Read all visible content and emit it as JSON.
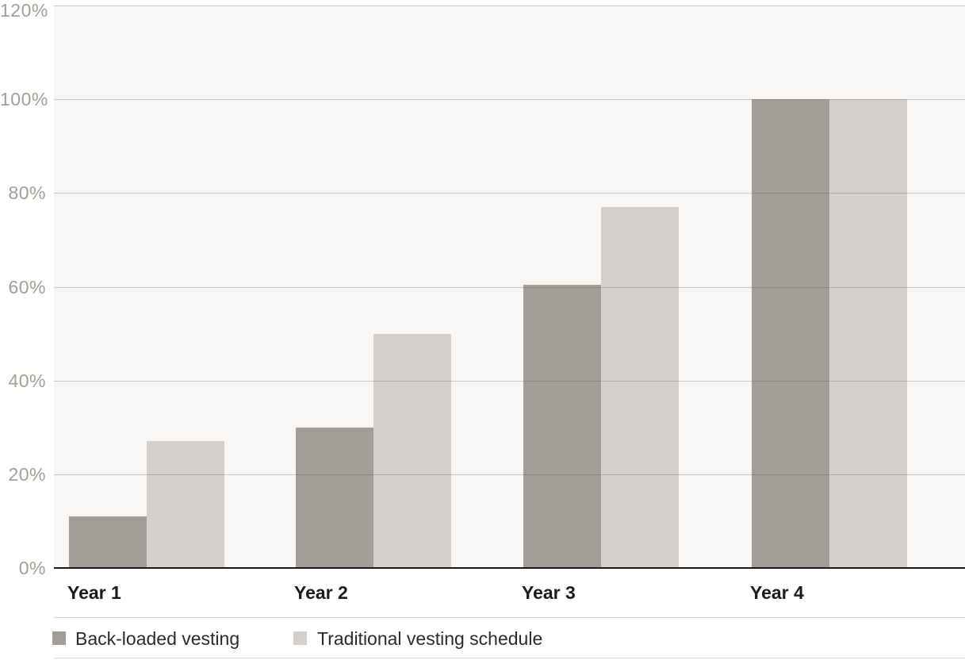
{
  "chart_data": {
    "type": "bar",
    "title": "",
    "categories": [
      "Year 1",
      "Year 2",
      "Year 3",
      "Year 4"
    ],
    "series": [
      {
        "name": "Back-loaded vesting",
        "values": [
          11,
          30,
          60.5,
          100
        ]
      },
      {
        "name": "Traditional vesting schedule",
        "values": [
          27,
          50,
          77,
          100
        ]
      }
    ],
    "ylabel": "",
    "xlabel": "",
    "ylim": [
      0,
      120
    ],
    "yticks": [
      0,
      20,
      40,
      60,
      80,
      100,
      120
    ],
    "ytick_labels": [
      "0%",
      "20%",
      "40%",
      "60%",
      "80%",
      "100%",
      "120%"
    ],
    "grid": true,
    "legend_position": "bottom"
  },
  "colors": {
    "series_back_loaded": "#a39d98",
    "series_traditional": "#d2cfcc",
    "plot_background": "#f8f7f6",
    "gridline": "rgba(85,80,75,0.28)",
    "axis_line": "#191919",
    "y_tick_text": "#a59e98",
    "x_tick_text": "#1b1b1b",
    "legend_text": "#2a2a2a",
    "separator_top": "#d3d0ce",
    "separator_bottom": "#dcdad8"
  }
}
